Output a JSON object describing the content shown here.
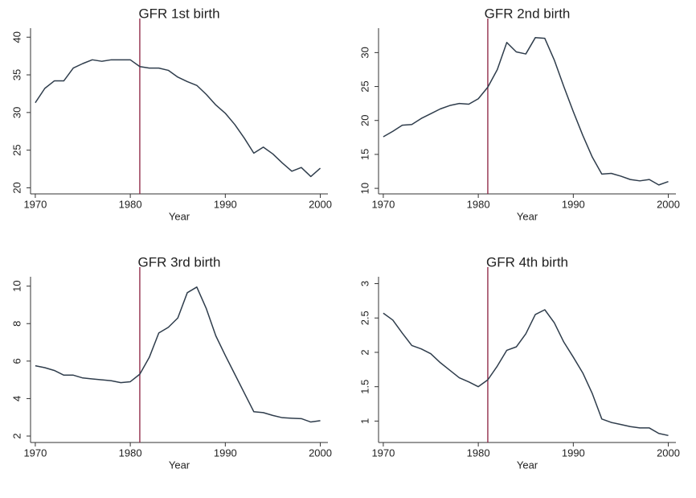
{
  "chart_data": [
    {
      "type": "line",
      "title": "GFR 1st birth",
      "x_label": "Year",
      "color": "#2f3d4c",
      "vline": 1981,
      "vline_color": "#8b1e3f",
      "x": [
        1970,
        1971,
        1972,
        1973,
        1974,
        1975,
        1976,
        1977,
        1978,
        1979,
        1980,
        1981,
        1982,
        1983,
        1984,
        1985,
        1986,
        1987,
        1988,
        1989,
        1990,
        1991,
        1992,
        1993,
        1994,
        1995,
        1996,
        1997,
        1998,
        1999,
        2000
      ],
      "values": [
        31.3,
        33.2,
        34.2,
        34.2,
        35.9,
        36.5,
        37.0,
        36.8,
        37.0,
        37.0,
        37.0,
        36.1,
        35.9,
        35.9,
        35.6,
        34.7,
        34.1,
        33.6,
        32.4,
        31.0,
        29.9,
        28.4,
        26.6,
        24.6,
        25.4,
        24.5,
        23.3,
        22.2,
        22.7,
        21.5,
        22.6
      ],
      "xlim": [
        1969.5,
        2000.8
      ],
      "xticks": [
        1970,
        1980,
        1990,
        2000
      ],
      "ylim": [
        19.3,
        41.2
      ],
      "yticks": [
        20,
        25,
        30,
        35,
        40
      ]
    },
    {
      "type": "line",
      "title": "GFR 2nd birth",
      "x_label": "Year",
      "color": "#2f3d4c",
      "vline": 1981,
      "vline_color": "#8b1e3f",
      "x": [
        1970,
        1971,
        1972,
        1973,
        1974,
        1975,
        1976,
        1977,
        1978,
        1979,
        1980,
        1981,
        1982,
        1983,
        1984,
        1985,
        1986,
        1987,
        1988,
        1989,
        1990,
        1991,
        1992,
        1993,
        1994,
        1995,
        1996,
        1997,
        1998,
        1999,
        2000
      ],
      "values": [
        17.6,
        18.4,
        19.3,
        19.4,
        20.3,
        21.0,
        21.7,
        22.2,
        22.5,
        22.4,
        23.2,
        24.9,
        27.5,
        31.5,
        30.1,
        29.8,
        32.2,
        32.1,
        28.9,
        25.0,
        21.3,
        17.8,
        14.6,
        12.1,
        12.2,
        11.8,
        11.3,
        11.1,
        11.3,
        10.5,
        11.0
      ],
      "xlim": [
        1969.5,
        2000.8
      ],
      "xticks": [
        1970,
        1980,
        1990,
        2000
      ],
      "ylim": [
        9.3,
        33.6
      ],
      "yticks": [
        10,
        15,
        20,
        25,
        30
      ]
    },
    {
      "type": "line",
      "title": "GFR 3rd birth",
      "x_label": "Year",
      "color": "#2f3d4c",
      "vline": 1981,
      "vline_color": "#8b1e3f",
      "x": [
        1970,
        1971,
        1972,
        1973,
        1974,
        1975,
        1976,
        1977,
        1978,
        1979,
        1980,
        1981,
        1982,
        1983,
        1984,
        1985,
        1986,
        1987,
        1988,
        1989,
        1990,
        1991,
        1992,
        1993,
        1994,
        1995,
        1996,
        1997,
        1998,
        1999,
        2000
      ],
      "values": [
        5.75,
        5.65,
        5.5,
        5.25,
        5.25,
        5.1,
        5.05,
        5.0,
        4.95,
        4.85,
        4.9,
        5.3,
        6.2,
        7.5,
        7.8,
        8.3,
        9.65,
        9.95,
        8.8,
        7.35,
        6.3,
        5.3,
        4.3,
        3.3,
        3.25,
        3.1,
        2.98,
        2.95,
        2.93,
        2.75,
        2.82
      ],
      "xlim": [
        1969.5,
        2000.8
      ],
      "xticks": [
        1970,
        1980,
        1990,
        2000
      ],
      "ylim": [
        1.7,
        10.5
      ],
      "yticks": [
        2,
        4,
        6,
        8,
        10
      ]
    },
    {
      "type": "line",
      "title": "GFR 4th birth",
      "x_label": "Year",
      "color": "#2f3d4c",
      "vline": 1981,
      "vline_color": "#8b1e3f",
      "x": [
        1970,
        1971,
        1972,
        1973,
        1974,
        1975,
        1976,
        1977,
        1978,
        1979,
        1980,
        1981,
        1982,
        1983,
        1984,
        1985,
        1986,
        1987,
        1988,
        1989,
        1990,
        1991,
        1992,
        1993,
        1994,
        1995,
        1996,
        1997,
        1998,
        1999,
        2000
      ],
      "values": [
        2.57,
        2.47,
        2.28,
        2.1,
        2.05,
        1.98,
        1.85,
        1.74,
        1.63,
        1.57,
        1.5,
        1.6,
        1.8,
        2.03,
        2.08,
        2.27,
        2.55,
        2.62,
        2.43,
        2.15,
        1.93,
        1.7,
        1.4,
        1.03,
        0.98,
        0.95,
        0.92,
        0.9,
        0.9,
        0.82,
        0.79
      ],
      "xlim": [
        1969.5,
        2000.8
      ],
      "xticks": [
        1970,
        1980,
        1990,
        2000
      ],
      "ylim": [
        0.7,
        3.1
      ],
      "yticks": [
        1,
        1.5,
        2,
        2.5,
        3
      ]
    }
  ]
}
